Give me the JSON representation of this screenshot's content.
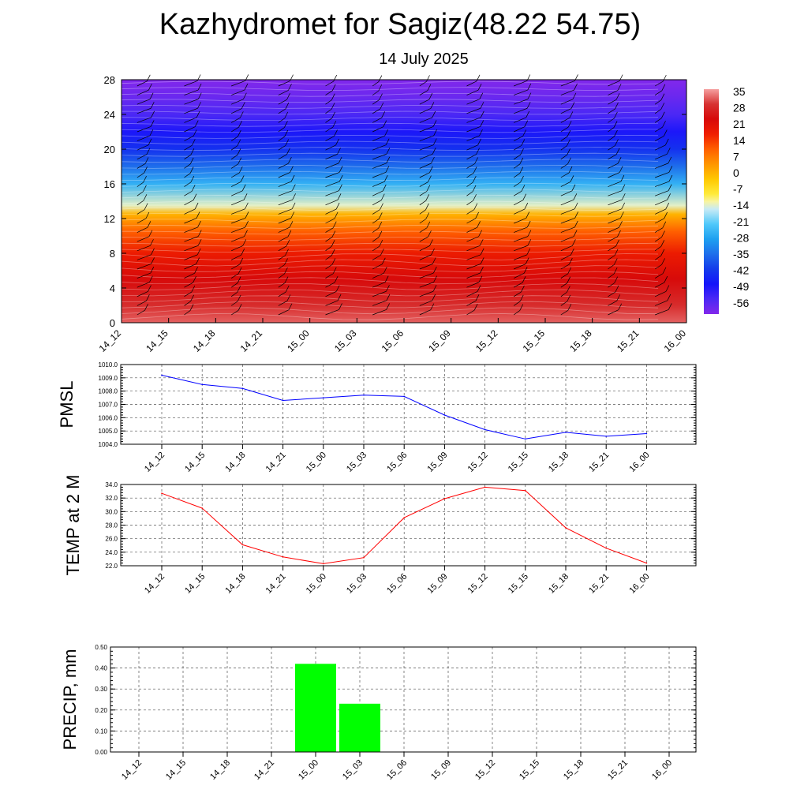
{
  "title": "Kazhydromet for Sagiz(48.22 54.75)",
  "subtitle": "14 July 2025",
  "chart_data": [
    {
      "type": "heatmap",
      "x": [
        "14_12",
        "14_15",
        "14_18",
        "14_21",
        "15_00",
        "15_03",
        "15_06",
        "15_09",
        "15_12",
        "15_15",
        "15_18",
        "15_21",
        "16_00"
      ],
      "yticks": [
        0,
        4,
        8,
        12,
        16,
        20,
        24,
        28
      ],
      "ylim": [
        0,
        28
      ],
      "colorbar": {
        "labels": [
          "35",
          "28",
          "21",
          "14",
          "7",
          "0",
          "-7",
          "-14",
          "-21",
          "-28",
          "-35",
          "-42",
          "-49",
          "-56"
        ],
        "range": [
          -63,
          42
        ]
      },
      "profile": [
        {
          "y": 0,
          "v": 38
        },
        {
          "y": 2,
          "v": 34
        },
        {
          "y": 5,
          "v": 28
        },
        {
          "y": 8,
          "v": 22
        },
        {
          "y": 10.5,
          "v": 14
        },
        {
          "y": 12.5,
          "v": 3
        },
        {
          "y": 13.5,
          "v": -12
        },
        {
          "y": 16,
          "v": -25
        },
        {
          "y": 18,
          "v": -35
        },
        {
          "y": 20,
          "v": -44
        },
        {
          "y": 22,
          "v": -50
        },
        {
          "y": 24,
          "v": -56
        },
        {
          "y": 26,
          "v": -60
        },
        {
          "y": 28,
          "v": -63
        }
      ],
      "wind_barbs": true
    },
    {
      "type": "line",
      "ylabel": "PMSL",
      "categories": [
        "14_12",
        "14_15",
        "14_18",
        "14_21",
        "15_00",
        "15_03",
        "15_06",
        "15_09",
        "15_12",
        "15_15",
        "15_18",
        "15_21",
        "16_00"
      ],
      "values": [
        1009.2,
        1008.5,
        1008.2,
        1007.3,
        1007.5,
        1007.7,
        1007.6,
        1006.2,
        1005.1,
        1004.4,
        1004.9,
        1004.6,
        1004.8
      ],
      "ylim": [
        1004.0,
        1010.0
      ],
      "yticks": [
        "1004.0",
        "1005.0",
        "1006.0",
        "1007.0",
        "1008.0",
        "1009.0",
        "1010.0"
      ],
      "color": "#0000ff"
    },
    {
      "type": "line",
      "ylabel": "TEMP at 2 M",
      "categories": [
        "14_12",
        "14_15",
        "14_18",
        "14_21",
        "15_00",
        "15_03",
        "15_06",
        "15_09",
        "15_12",
        "15_15",
        "15_18",
        "15_21",
        "16_00"
      ],
      "values": [
        32.7,
        30.5,
        25.1,
        23.3,
        22.3,
        23.2,
        29.1,
        31.9,
        33.6,
        33.1,
        27.6,
        24.6,
        22.4
      ],
      "ylim": [
        22.0,
        34.0
      ],
      "yticks": [
        "22.0",
        "24.0",
        "26.0",
        "28.0",
        "30.0",
        "32.0",
        "34.0"
      ],
      "color": "#ff0000"
    },
    {
      "type": "bar",
      "ylabel": "PRECIP, mm",
      "categories": [
        "14_12",
        "14_15",
        "14_18",
        "14_21",
        "15_00",
        "15_03",
        "15_06",
        "15_09",
        "15_12",
        "15_15",
        "15_18",
        "15_21",
        "16_00"
      ],
      "values": [
        0,
        0,
        0,
        0,
        0.42,
        0.23,
        0,
        0,
        0,
        0,
        0,
        0,
        0
      ],
      "ylim": [
        0,
        0.5
      ],
      "yticks": [
        "0.00",
        "0.10",
        "0.20",
        "0.30",
        "0.40",
        "0.50"
      ],
      "color": "#00ff00"
    }
  ]
}
